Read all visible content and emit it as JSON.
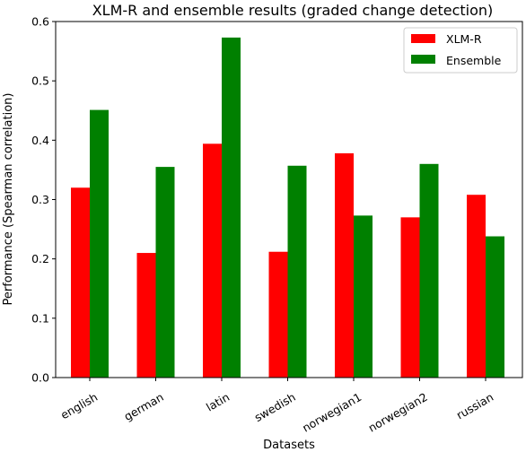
{
  "chart_data": {
    "type": "bar",
    "title": "XLM-R and ensemble results (graded change detection)",
    "xlabel": "Datasets",
    "ylabel": "Performance (Spearman correlation)",
    "categories": [
      "english",
      "german",
      "latin",
      "swedish",
      "norwegian1",
      "norwegian2",
      "russian"
    ],
    "ylim": [
      0,
      0.6
    ],
    "yticks": [
      "0.0",
      "0.1",
      "0.2",
      "0.3",
      "0.4",
      "0.5",
      "0.6"
    ],
    "series": [
      {
        "name": "XLM-R",
        "color": "#ff0000",
        "values": [
          0.32,
          0.21,
          0.394,
          0.212,
          0.378,
          0.27,
          0.308
        ]
      },
      {
        "name": "Ensemble",
        "color": "#008000",
        "values": [
          0.451,
          0.355,
          0.573,
          0.357,
          0.273,
          0.36,
          0.238
        ]
      }
    ],
    "legend_position": "top-right",
    "grid": false
  }
}
